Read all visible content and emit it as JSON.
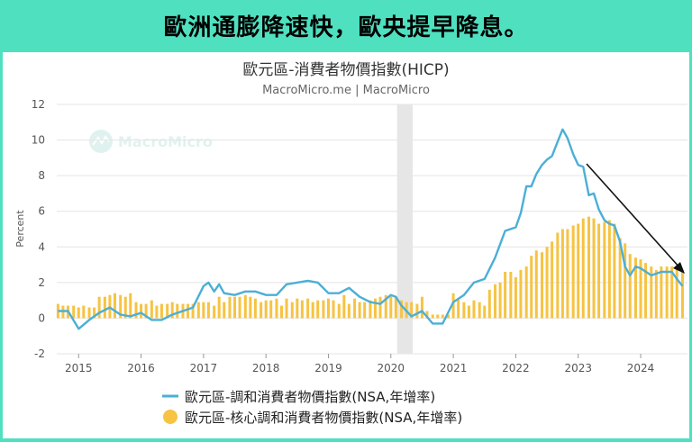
{
  "banner": {
    "headline": "歐洲通膨降速快，歐央提早降息。"
  },
  "watermark": {
    "text": "MacroMicro"
  },
  "colors": {
    "line": "#4bafd6",
    "bar": "#f6c343",
    "arrow": "#111111",
    "shade": "#e6e6e6",
    "banner_bg": "#4fe0c0"
  },
  "chart_data": {
    "type": "bar+line",
    "title": "歐元區-消費者物價指數(HICP)",
    "subtitle": "MacroMicro.me | MacroMicro",
    "ylabel": "Percent",
    "xlabel": "",
    "ylim": [
      -2,
      12
    ],
    "yticks": [
      -2,
      0,
      2,
      4,
      6,
      8,
      10,
      12
    ],
    "xlim": [
      2014.65,
      2024.75
    ],
    "xticks": [
      {
        "value": 2015,
        "label": "2015"
      },
      {
        "value": 2016,
        "label": "2016"
      },
      {
        "value": 2017,
        "label": "2017"
      },
      {
        "value": 2018,
        "label": "2018"
      },
      {
        "value": 2019,
        "label": "2019"
      },
      {
        "value": 2020,
        "label": "2020"
      },
      {
        "value": 2021,
        "label": "2021"
      },
      {
        "value": 2022,
        "label": "2022"
      },
      {
        "value": 2023,
        "label": "2023"
      },
      {
        "value": 2024,
        "label": "2024"
      }
    ],
    "grid": true,
    "legend_position": "bottom",
    "shaded_region": [
      2020.1,
      2020.35
    ],
    "series": [
      {
        "name": "歐元區-調和消費者物價指數(NSA,年增率)",
        "type": "line",
        "color": "#4bafd6",
        "x": [
          2014.67,
          2014.83,
          2015.0,
          2015.17,
          2015.33,
          2015.5,
          2015.67,
          2015.83,
          2016.0,
          2016.17,
          2016.33,
          2016.5,
          2016.67,
          2016.83,
          2017.0,
          2017.08,
          2017.17,
          2017.25,
          2017.33,
          2017.5,
          2017.67,
          2017.83,
          2018.0,
          2018.17,
          2018.33,
          2018.5,
          2018.67,
          2018.83,
          2019.0,
          2019.17,
          2019.33,
          2019.5,
          2019.67,
          2019.83,
          2020.0,
          2020.08,
          2020.17,
          2020.33,
          2020.5,
          2020.67,
          2020.83,
          2021.0,
          2021.17,
          2021.33,
          2021.5,
          2021.67,
          2021.83,
          2022.0,
          2022.08,
          2022.17,
          2022.25,
          2022.33,
          2022.42,
          2022.5,
          2022.58,
          2022.67,
          2022.75,
          2022.83,
          2022.92,
          2023.0,
          2023.08,
          2023.17,
          2023.25,
          2023.33,
          2023.42,
          2023.5,
          2023.58,
          2023.67,
          2023.75,
          2023.83,
          2023.92,
          2024.0,
          2024.17,
          2024.33,
          2024.5,
          2024.58,
          2024.67
        ],
        "values": [
          0.4,
          0.4,
          -0.6,
          -0.1,
          0.3,
          0.6,
          0.2,
          0.1,
          0.3,
          -0.1,
          -0.1,
          0.2,
          0.4,
          0.6,
          1.8,
          2.0,
          1.5,
          1.9,
          1.4,
          1.3,
          1.5,
          1.5,
          1.3,
          1.3,
          1.9,
          2.0,
          2.1,
          2.0,
          1.4,
          1.4,
          1.7,
          1.2,
          0.9,
          0.8,
          1.3,
          1.2,
          0.7,
          0.1,
          0.4,
          -0.3,
          -0.3,
          0.9,
          1.3,
          2.0,
          2.2,
          3.4,
          4.9,
          5.1,
          5.9,
          7.4,
          7.4,
          8.1,
          8.6,
          8.9,
          9.1,
          9.9,
          10.6,
          10.1,
          9.2,
          8.6,
          8.5,
          6.9,
          7.0,
          6.1,
          5.5,
          5.3,
          5.2,
          4.3,
          2.9,
          2.4,
          2.9,
          2.8,
          2.4,
          2.6,
          2.6,
          2.2,
          1.8
        ]
      },
      {
        "name": "歐元區-核心調和消費者物價指數(NSA,年增率)",
        "type": "bar",
        "color": "#f6c343",
        "x": [
          2014.67,
          2014.75,
          2014.83,
          2014.92,
          2015.0,
          2015.08,
          2015.17,
          2015.25,
          2015.33,
          2015.42,
          2015.5,
          2015.58,
          2015.67,
          2015.75,
          2015.83,
          2015.92,
          2016.0,
          2016.08,
          2016.17,
          2016.25,
          2016.33,
          2016.42,
          2016.5,
          2016.58,
          2016.67,
          2016.75,
          2016.83,
          2016.92,
          2017.0,
          2017.08,
          2017.17,
          2017.25,
          2017.33,
          2017.42,
          2017.5,
          2017.58,
          2017.67,
          2017.75,
          2017.83,
          2017.92,
          2018.0,
          2018.08,
          2018.17,
          2018.25,
          2018.33,
          2018.42,
          2018.5,
          2018.58,
          2018.67,
          2018.75,
          2018.83,
          2018.92,
          2019.0,
          2019.08,
          2019.17,
          2019.25,
          2019.33,
          2019.42,
          2019.5,
          2019.58,
          2019.67,
          2019.75,
          2019.83,
          2019.92,
          2020.0,
          2020.08,
          2020.17,
          2020.25,
          2020.33,
          2020.42,
          2020.5,
          2020.58,
          2020.67,
          2020.75,
          2020.83,
          2020.92,
          2021.0,
          2021.08,
          2021.17,
          2021.25,
          2021.33,
          2021.42,
          2021.5,
          2021.58,
          2021.67,
          2021.75,
          2021.83,
          2021.92,
          2022.0,
          2022.08,
          2022.17,
          2022.25,
          2022.33,
          2022.42,
          2022.5,
          2022.58,
          2022.67,
          2022.75,
          2022.83,
          2022.92,
          2023.0,
          2023.08,
          2023.17,
          2023.25,
          2023.33,
          2023.42,
          2023.5,
          2023.58,
          2023.67,
          2023.75,
          2023.83,
          2023.92,
          2024.0,
          2024.08,
          2024.17,
          2024.25,
          2024.33,
          2024.42,
          2024.5,
          2024.58,
          2024.67
        ],
        "values": [
          0.8,
          0.7,
          0.7,
          0.7,
          0.6,
          0.7,
          0.6,
          0.6,
          1.2,
          1.2,
          1.3,
          1.4,
          1.3,
          1.2,
          1.4,
          0.9,
          0.8,
          0.8,
          1.0,
          0.7,
          0.8,
          0.8,
          0.9,
          0.8,
          0.8,
          0.8,
          0.8,
          0.9,
          0.9,
          0.9,
          0.7,
          1.2,
          0.9,
          1.2,
          1.2,
          1.2,
          1.3,
          1.2,
          1.1,
          0.9,
          1.0,
          1.0,
          1.1,
          0.7,
          1.1,
          0.9,
          1.1,
          1.0,
          1.1,
          0.9,
          1.0,
          1.0,
          1.1,
          1.0,
          0.8,
          1.3,
          0.8,
          1.1,
          0.9,
          0.9,
          1.0,
          1.1,
          1.2,
          1.3,
          1.2,
          1.2,
          1.0,
          0.9,
          0.9,
          0.8,
          1.2,
          0.4,
          0.2,
          0.2,
          0.2,
          0.2,
          1.4,
          1.1,
          0.9,
          0.7,
          1.0,
          0.9,
          0.7,
          1.6,
          1.9,
          2.0,
          2.6,
          2.6,
          2.3,
          2.7,
          2.9,
          3.5,
          3.8,
          3.7,
          4.0,
          4.3,
          4.8,
          5.0,
          5.0,
          5.2,
          5.3,
          5.6,
          5.7,
          5.6,
          5.3,
          5.4,
          5.5,
          5.3,
          4.5,
          4.2,
          3.6,
          3.4,
          3.3,
          3.1,
          2.9,
          2.7,
          2.9,
          2.9,
          2.9,
          2.8,
          2.7
        ]
      }
    ]
  }
}
